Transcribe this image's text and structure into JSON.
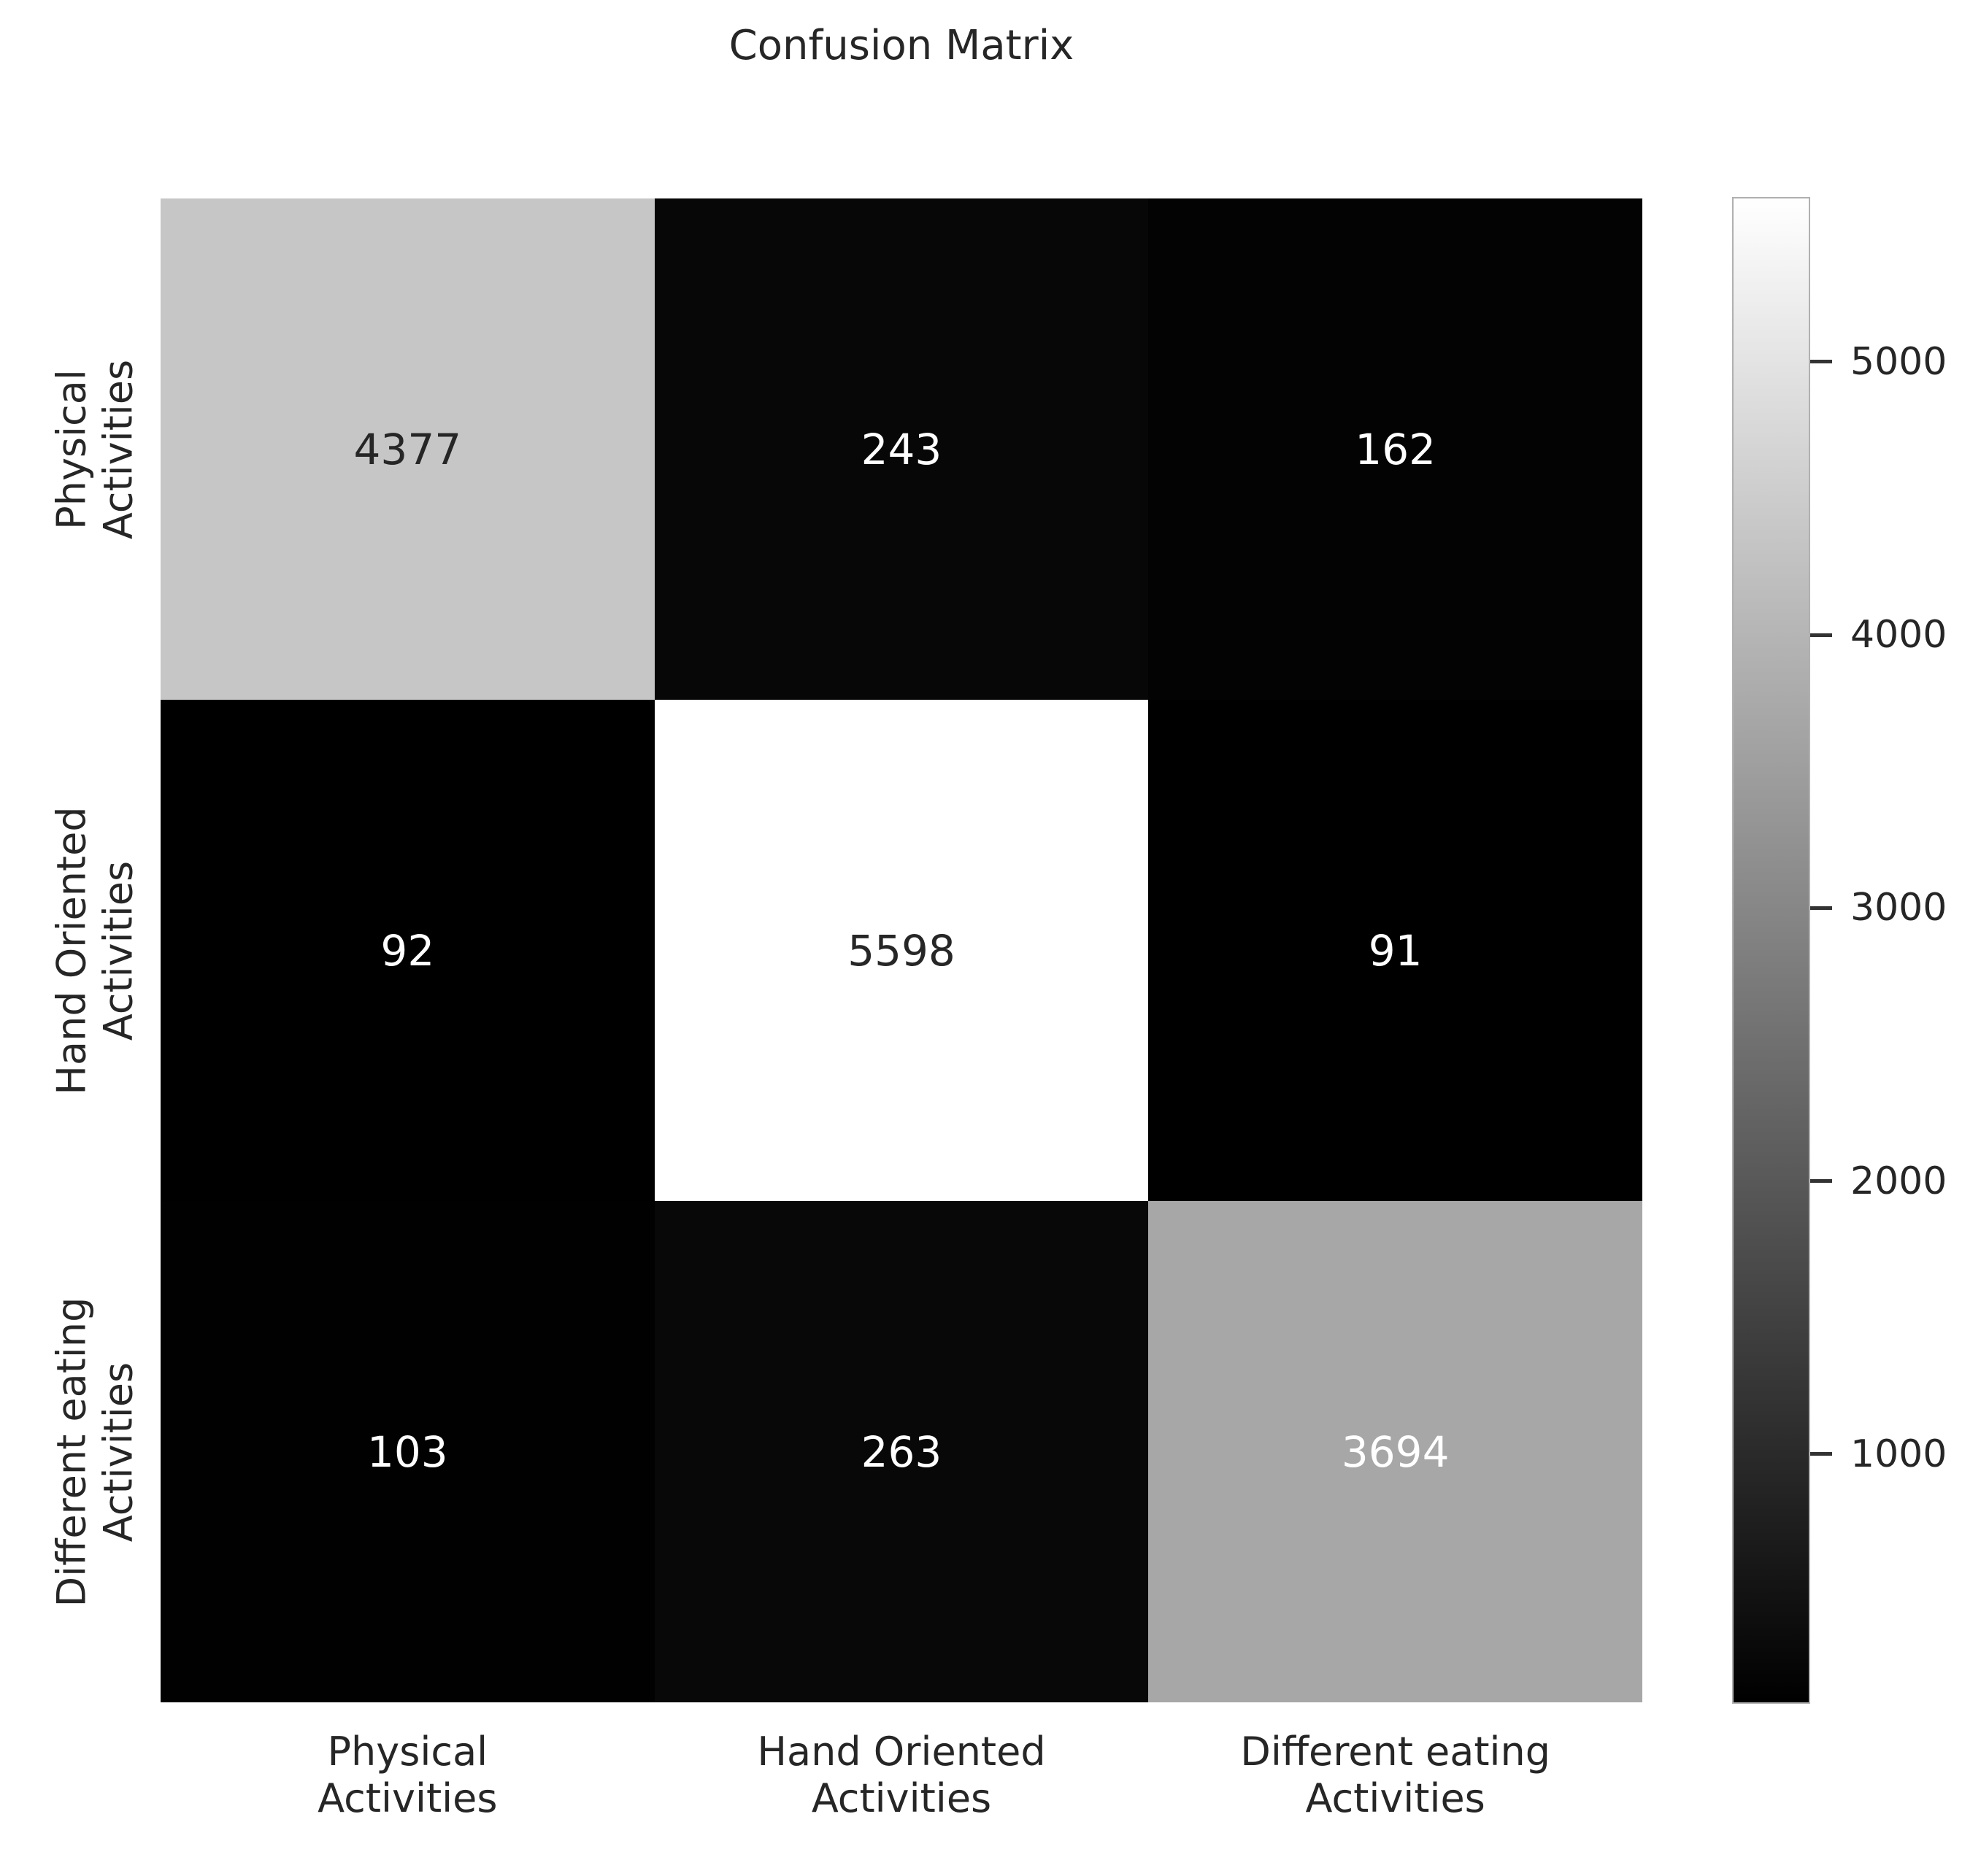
{
  "chart_data": {
    "type": "heatmap",
    "title": "Confusion Matrix",
    "x_axis_labels": [
      "Physical\nActivities",
      "Hand Oriented\nActivities",
      "Different eating\nActivities"
    ],
    "y_axis_labels": [
      "Physical\nActivities",
      "Hand Oriented\nActivities",
      "Different eating\nActivities"
    ],
    "matrix": [
      [
        4377,
        243,
        162
      ],
      [
        92,
        5598,
        91
      ],
      [
        103,
        263,
        3694
      ]
    ],
    "colormap": "gray",
    "color_scale": {
      "min_color": "#000000",
      "max_color": "#ffffff"
    },
    "value_range": [
      91,
      5598
    ],
    "colorbar_ticks": [
      1000,
      2000,
      3000,
      4000,
      5000
    ],
    "colorbar_position": "right",
    "annotation_text_colors": {
      "on_dark": "#ffffff",
      "on_light": "#262626"
    },
    "grid": false
  }
}
